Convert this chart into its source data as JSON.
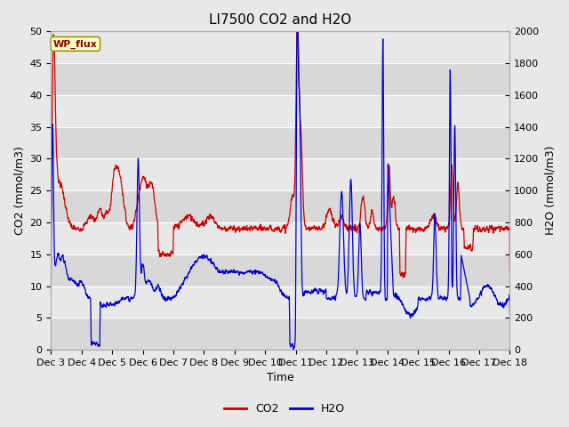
{
  "title": "LI7500 CO2 and H2O",
  "xlabel": "Time",
  "ylabel_left": "CO2 (mmol/m3)",
  "ylabel_right": "H2O (mmol/m3)",
  "ylim_left": [
    0,
    50
  ],
  "ylim_right": [
    0,
    2000
  ],
  "yticks_left": [
    0,
    5,
    10,
    15,
    20,
    25,
    30,
    35,
    40,
    45,
    50
  ],
  "yticks_right": [
    0,
    200,
    400,
    600,
    800,
    1000,
    1200,
    1400,
    1600,
    1800,
    2000
  ],
  "xtick_labels": [
    "Dec 3",
    "Dec 4",
    "Dec 5",
    "Dec 6",
    "Dec 7",
    "Dec 8",
    "Dec 9",
    "Dec 10",
    "Dec 11",
    "Dec 12",
    "Dec 13",
    "Dec 14",
    "Dec 15",
    "Dec 16",
    "Dec 17",
    "Dec 18"
  ],
  "co2_color": "#cc0000",
  "h2o_color": "#0000cc",
  "legend_label_co2": "CO2",
  "legend_label_h2o": "H2O",
  "watermark": "WP_flux",
  "fig_bg_color": "#e8e8e8",
  "plot_bg_color": "#e8e8e8",
  "alt_band_color": "#d8d8d8",
  "grid_color": "#ffffff",
  "title_fontsize": 11,
  "axis_label_fontsize": 9,
  "tick_fontsize": 8,
  "legend_fontsize": 9,
  "linewidth_co2": 0.9,
  "linewidth_h2o": 0.9
}
